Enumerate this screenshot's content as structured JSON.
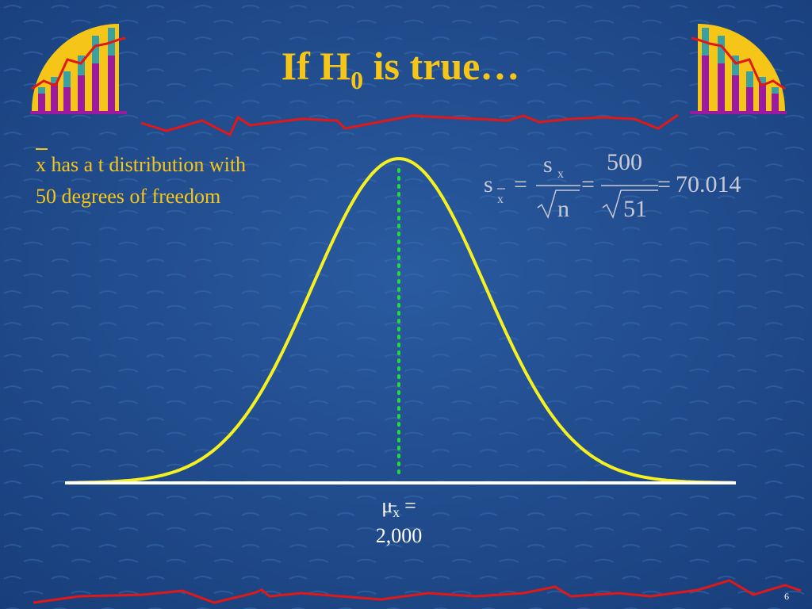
{
  "title": {
    "text": "If H",
    "sub": "0",
    "rest": " is true…"
  },
  "note": {
    "var": "x",
    "line1": " has a t distribution with",
    "line2": "50 degrees of freedom"
  },
  "formula": {
    "lhs": "s",
    "lhs_sub": "x",
    "equals": "=",
    "num1": "s",
    "num1_sub": "x",
    "den1": "n",
    "num2": "500",
    "den2": "51",
    "result": "70.014"
  },
  "center_label": {
    "symbol": "μ",
    "sub": "x",
    "equals": "=",
    "value": "2,000"
  },
  "page_number": "6"
}
